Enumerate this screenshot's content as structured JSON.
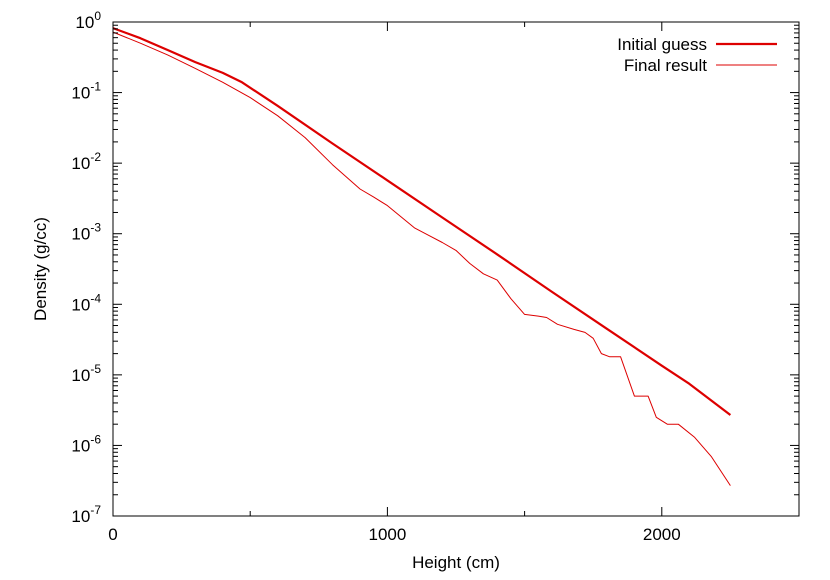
{
  "chart_data": {
    "type": "line",
    "title": "",
    "xlabel": "Height (cm)",
    "ylabel": "Density (g/cc)",
    "xlim": [
      0,
      2500
    ],
    "ylim_log10": [
      -7,
      0
    ],
    "y_scale": "log",
    "grid": false,
    "legend_position": "top-right",
    "x_ticks": [
      {
        "value": 0,
        "label": "0"
      },
      {
        "value": 1000,
        "label": "1000"
      },
      {
        "value": 2000,
        "label": "2000"
      }
    ],
    "y_ticks": [
      {
        "exp": 0,
        "base": "10",
        "sup": "0"
      },
      {
        "exp": -1,
        "base": "10",
        "sup": "-1"
      },
      {
        "exp": -2,
        "base": "10",
        "sup": "-2"
      },
      {
        "exp": -3,
        "base": "10",
        "sup": "-3"
      },
      {
        "exp": -4,
        "base": "10",
        "sup": "-4"
      },
      {
        "exp": -5,
        "base": "10",
        "sup": "-5"
      },
      {
        "exp": -6,
        "base": "10",
        "sup": "-6"
      },
      {
        "exp": -7,
        "base": "10",
        "sup": "-7"
      }
    ],
    "series": [
      {
        "name": "Initial guess",
        "color": "#dd0000",
        "width": 2.2,
        "points": [
          [
            0,
            0.82
          ],
          [
            100,
            0.59
          ],
          [
            200,
            0.4
          ],
          [
            300,
            0.27
          ],
          [
            400,
            0.19
          ],
          [
            470,
            0.14
          ],
          [
            600,
            0.065
          ],
          [
            800,
            0.019
          ],
          [
            1000,
            0.0057
          ],
          [
            1200,
            0.0017
          ],
          [
            1400,
            0.00051
          ],
          [
            1600,
            0.00015
          ],
          [
            1800,
            4.5e-05
          ],
          [
            2000,
            1.35e-05
          ],
          [
            2100,
            7.5e-06
          ],
          [
            2250,
            2.7e-06
          ]
        ]
      },
      {
        "name": "Final result",
        "color": "#dd0000",
        "width": 1,
        "points": [
          [
            0,
            0.72
          ],
          [
            100,
            0.5
          ],
          [
            200,
            0.34
          ],
          [
            300,
            0.22
          ],
          [
            400,
            0.14
          ],
          [
            500,
            0.085
          ],
          [
            600,
            0.047
          ],
          [
            700,
            0.023
          ],
          [
            800,
            0.0095
          ],
          [
            900,
            0.0043
          ],
          [
            950,
            0.0033
          ],
          [
            1000,
            0.0025
          ],
          [
            1100,
            0.0012
          ],
          [
            1150,
            0.00095
          ],
          [
            1200,
            0.00075
          ],
          [
            1250,
            0.00058
          ],
          [
            1300,
            0.00038
          ],
          [
            1350,
            0.00027
          ],
          [
            1400,
            0.00022
          ],
          [
            1450,
            0.00012
          ],
          [
            1500,
            7.2e-05
          ],
          [
            1550,
            6.8e-05
          ],
          [
            1580,
            6.5e-05
          ],
          [
            1620,
            5.2e-05
          ],
          [
            1680,
            4.4e-05
          ],
          [
            1720,
            4e-05
          ],
          [
            1750,
            3.3e-05
          ],
          [
            1780,
            2e-05
          ],
          [
            1810,
            1.8e-05
          ],
          [
            1850,
            1.8e-05
          ],
          [
            1900,
            5e-06
          ],
          [
            1950,
            5e-06
          ],
          [
            1980,
            2.5e-06
          ],
          [
            2020,
            2e-06
          ],
          [
            2060,
            2e-06
          ],
          [
            2120,
            1.3e-06
          ],
          [
            2180,
            7e-07
          ],
          [
            2250,
            2.7e-07
          ]
        ]
      }
    ]
  }
}
